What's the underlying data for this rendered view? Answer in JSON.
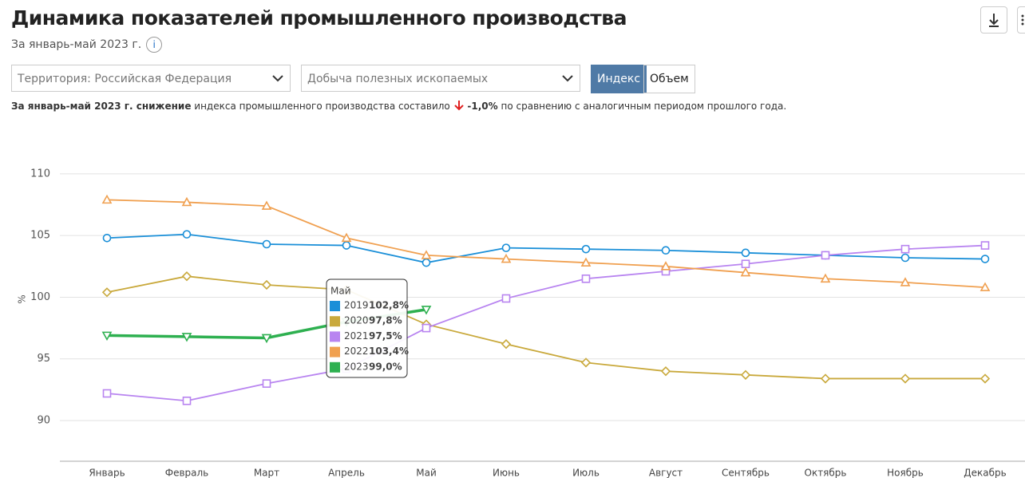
{
  "header": {
    "title": "Динамика показателей промышленного производства",
    "subtitle": "За январь-май 2023 г.",
    "info": "i"
  },
  "controls": {
    "territory": "Территория: Российская  Федерация",
    "indicator": "Добыча полезных ископаемых",
    "buttons": [
      "Индекс",
      "Объем"
    ]
  },
  "summary": {
    "lead": "За январь-май 2023 г. снижение",
    "middle": "индекса промышленного производства составило",
    "change": "-1,0%",
    "tail": "по сравнению с аналогичным периодом прошлого года."
  },
  "chart_data": {
    "type": "line",
    "y_label": "%",
    "categories": [
      "Январь",
      "Февраль",
      "Март",
      "Апрель",
      "Май",
      "Июнь",
      "Июль",
      "Август",
      "Сентябрь",
      "Октябрь",
      "Ноябрь",
      "Декабрь"
    ],
    "ylim": [
      86.7,
      112
    ],
    "yticks": [
      90,
      95,
      100,
      105,
      110
    ],
    "grid": true,
    "series": [
      {
        "name": "2019",
        "color": "#1a8fd8",
        "marker": "circle",
        "values": [
          104.8,
          105.1,
          104.3,
          104.2,
          102.8,
          104.0,
          103.9,
          103.8,
          103.6,
          103.4,
          103.2,
          103.1
        ],
        "value_labels": [
          null,
          null,
          null,
          null,
          "102,8%",
          null,
          null,
          null,
          null,
          null,
          null,
          null
        ]
      },
      {
        "name": "2020",
        "color": "#c9a93c",
        "marker": "diamond",
        "values": [
          100.4,
          101.7,
          101.0,
          100.6,
          97.8,
          96.2,
          94.7,
          94.0,
          93.7,
          93.4,
          93.4,
          93.4
        ],
        "value_labels": [
          null,
          null,
          null,
          null,
          "97,8%",
          null,
          null,
          null,
          null,
          null,
          null,
          null
        ]
      },
      {
        "name": "2021",
        "color": "#b884f0",
        "marker": "square",
        "values": [
          92.2,
          91.6,
          93.0,
          94.2,
          97.5,
          99.9,
          101.5,
          102.1,
          102.7,
          103.4,
          103.9,
          104.2
        ],
        "value_labels": [
          null,
          null,
          null,
          null,
          "97,5%",
          null,
          null,
          null,
          null,
          null,
          null,
          null
        ]
      },
      {
        "name": "2022",
        "color": "#f0a050",
        "marker": "triangle",
        "values": [
          107.9,
          107.7,
          107.4,
          104.8,
          103.4,
          103.1,
          102.8,
          102.5,
          102.0,
          101.5,
          101.2,
          100.8
        ],
        "value_labels": [
          null,
          null,
          null,
          null,
          "103,4%",
          null,
          null,
          null,
          null,
          null,
          null,
          null
        ]
      },
      {
        "name": "2023",
        "color": "#2eb050",
        "marker": "triangle-down",
        "values": [
          96.9,
          96.8,
          96.7,
          98.0,
          99.0,
          null,
          null,
          null,
          null,
          null,
          null,
          null
        ],
        "value_labels": [
          null,
          null,
          null,
          null,
          "99,0%",
          null,
          null,
          null,
          null,
          null,
          null,
          null
        ]
      }
    ],
    "tooltip_index": 4
  }
}
